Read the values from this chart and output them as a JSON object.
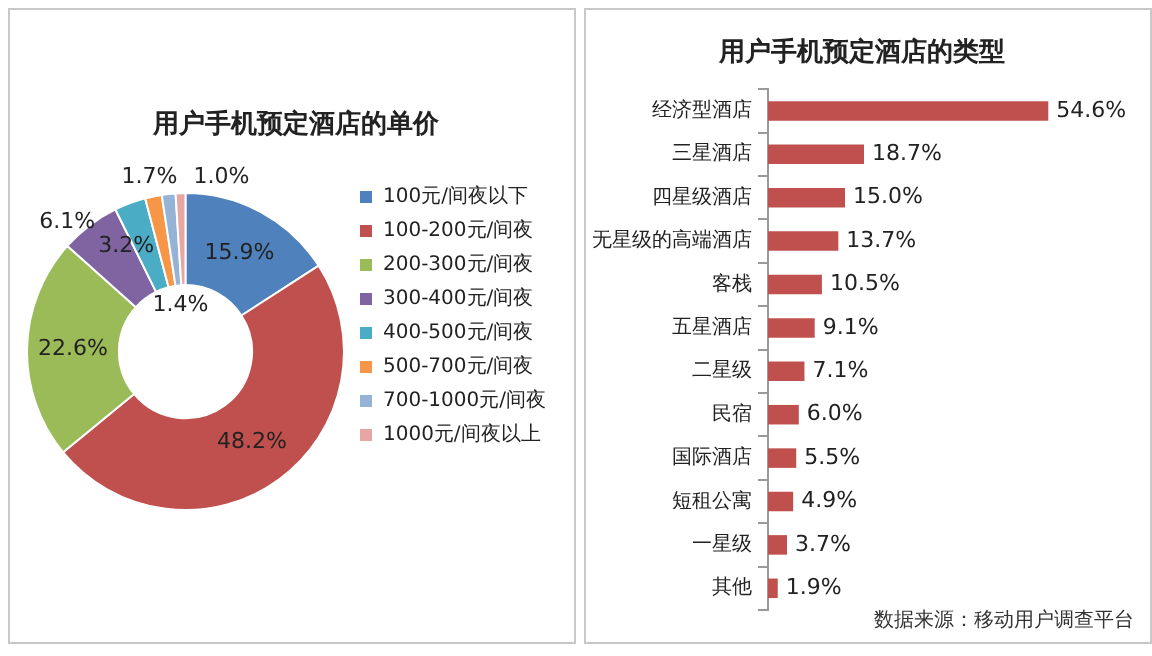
{
  "chart_data": [
    {
      "type": "donut",
      "title": "用户手机预定酒店的单价",
      "categories": [
        "100元/间夜以下",
        "100-200元/间夜",
        "200-300元/间夜",
        "300-400元/间夜",
        "400-500元/间夜",
        "500-700元/间夜",
        "700-1000元/间夜",
        "1000元/间夜以上"
      ],
      "values": [
        15.9,
        48.2,
        22.6,
        6.1,
        3.2,
        1.7,
        1.4,
        1.0
      ],
      "colors": [
        "#4f81bd",
        "#c0504d",
        "#9bbb59",
        "#8064a2",
        "#4bacc6",
        "#f79646",
        "#95b3d7",
        "#e6a6a4"
      ],
      "value_labels": [
        "15.9%",
        "48.2%",
        "22.6%",
        "6.1%",
        "3.2%",
        "1.7%",
        "1.4%",
        "1.0%"
      ],
      "legend": "right"
    },
    {
      "type": "bar",
      "orientation": "horizontal",
      "title": "用户手机预定酒店的类型",
      "categories": [
        "经济型酒店",
        "三星酒店",
        "四星级酒店",
        "无星级的高端酒店",
        "客栈",
        "五星酒店",
        "二星级",
        "民宿",
        "国际酒店",
        "短租公寓",
        "一星级",
        "其他"
      ],
      "values": [
        54.6,
        18.7,
        15.0,
        13.7,
        10.5,
        9.1,
        7.1,
        6.0,
        5.5,
        4.9,
        3.7,
        1.9
      ],
      "color": "#c0504d",
      "value_labels": [
        "54.6%",
        "18.7%",
        "15.0%",
        "13.7%",
        "10.5%",
        "9.1%",
        "7.1%",
        "6.0%",
        "5.5%",
        "4.9%",
        "3.7%",
        "1.9%"
      ],
      "grid": false,
      "legend": false,
      "annotations": [
        "数据来源：移动用户调查平台"
      ]
    }
  ]
}
